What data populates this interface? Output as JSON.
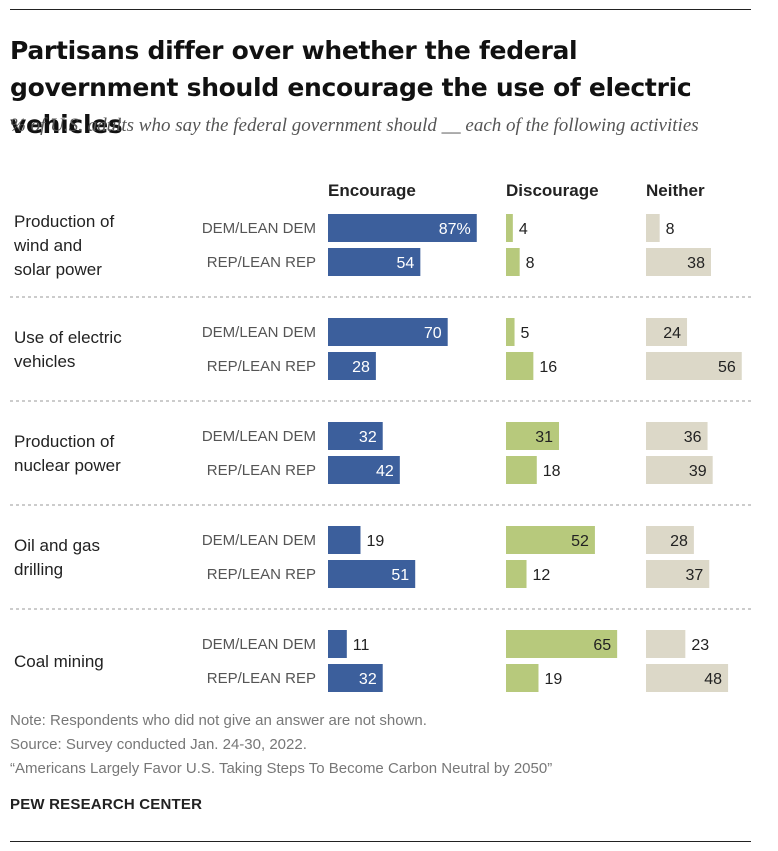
{
  "title": "Partisans differ over whether the federal government should encourage the use of electric vehicles",
  "subtitle": "% of U.S. adults who say the federal government should __ each of the following activities",
  "colors": {
    "encourage": "#3c5f9c",
    "discourage": "#b7c97c",
    "neither": "#dcd8c8",
    "divider": "#999999"
  },
  "chart_data": {
    "type": "bar",
    "columns": [
      "Encourage",
      "Discourage",
      "Neither"
    ],
    "groups": [
      "DEM/LEAN DEM",
      "REP/LEAN REP"
    ],
    "categories": [
      {
        "label": "Production of wind and solar power",
        "lines": [
          "Production of",
          "wind and",
          "solar power"
        ],
        "dem": [
          87,
          4,
          8
        ],
        "rep": [
          54,
          8,
          38
        ]
      },
      {
        "label": "Use of electric vehicles",
        "lines": [
          "Use of electric",
          "vehicles"
        ],
        "dem": [
          70,
          5,
          24
        ],
        "rep": [
          28,
          16,
          56
        ]
      },
      {
        "label": "Production of nuclear power",
        "lines": [
          "Production of",
          "nuclear power"
        ],
        "dem": [
          32,
          31,
          36
        ],
        "rep": [
          42,
          18,
          39
        ]
      },
      {
        "label": "Oil and gas drilling",
        "lines": [
          "Oil and gas",
          "drilling"
        ],
        "dem": [
          19,
          52,
          28
        ],
        "rep": [
          51,
          12,
          37
        ]
      },
      {
        "label": "Coal mining",
        "lines": [
          "Coal mining"
        ],
        "dem": [
          11,
          65,
          23
        ],
        "rep": [
          32,
          19,
          48
        ]
      }
    ],
    "first_value_suffix": "%"
  },
  "notes": {
    "note": "Note: Respondents who did not give an answer are not shown.",
    "source": "Source: Survey conducted Jan. 24-30, 2022.",
    "report": "“Americans Largely Favor U.S. Taking Steps To Become Carbon Neutral by 2050”"
  },
  "brand": "PEW RESEARCH CENTER"
}
